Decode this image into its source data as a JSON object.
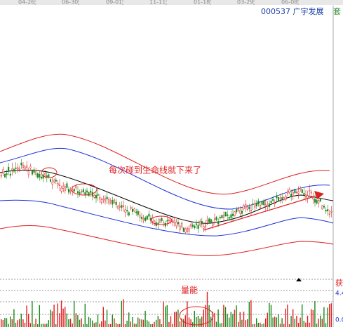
{
  "header": {
    "code_name": "000537 广宇发展",
    "corner": "套"
  },
  "dates": [
    "04-26",
    "06-30",
    "09-01",
    "11-11",
    "01-18",
    "03-29",
    "06-08"
  ],
  "annotations": {
    "main": "每次碰到生命线就下来了",
    "volume": "量能"
  },
  "side_labels": {
    "top": "获",
    "upper_value": "4.4",
    "lower_value": "0.0"
  }
}
